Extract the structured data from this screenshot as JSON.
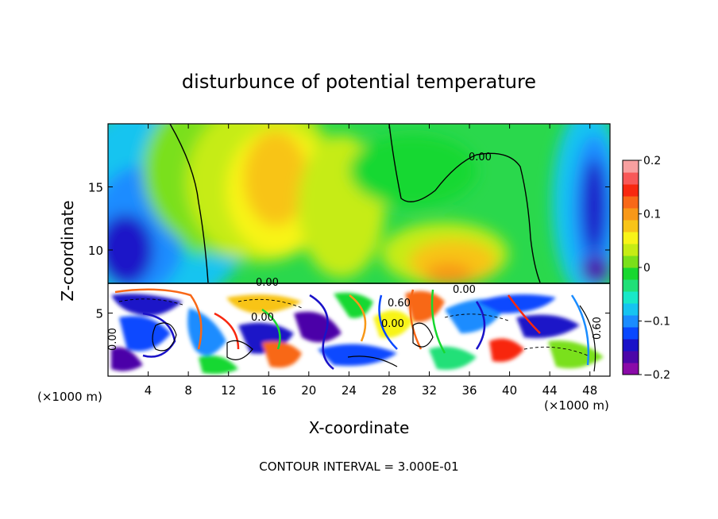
{
  "chart_data": {
    "type": "heatmap",
    "title": "disturbunce of potential temperature",
    "xlabel": "X-coordinate",
    "ylabel": "Z-coordinate",
    "x_unit_left": "(×1000 m)",
    "x_unit_right": "(×1000 m)",
    "xlim": [
      0,
      50
    ],
    "ylim": [
      0,
      20
    ],
    "x_ticks": [
      4,
      8,
      12,
      16,
      20,
      24,
      28,
      32,
      36,
      40,
      44,
      48
    ],
    "y_ticks": [
      5,
      10,
      15
    ],
    "footer": "CONTOUR INTERVAL = 3.000E-01",
    "colorbar": {
      "range": [
        -0.2,
        0.2
      ],
      "tick_labels": [
        "0.2",
        "0.1",
        "0",
        "−0.1",
        "−0.2"
      ],
      "tick_values": [
        0.2,
        0.1,
        0,
        -0.1,
        -0.2
      ],
      "colors": [
        "#8a0aa8",
        "#4c06a8",
        "#1a12c8",
        "#0848ff",
        "#1a8cff",
        "#16c4f0",
        "#18e8c8",
        "#20e078",
        "#18d830",
        "#7ae01a",
        "#c6ec14",
        "#f8f418",
        "#f8c418",
        "#f89818",
        "#f86818",
        "#f82810",
        "#f85858",
        "#f8a0a0"
      ]
    },
    "contour_labels": [
      "0.00",
      "0.00",
      "0.00",
      "0.00",
      "0.00",
      "0.60",
      "0.00",
      "0.60"
    ]
  }
}
